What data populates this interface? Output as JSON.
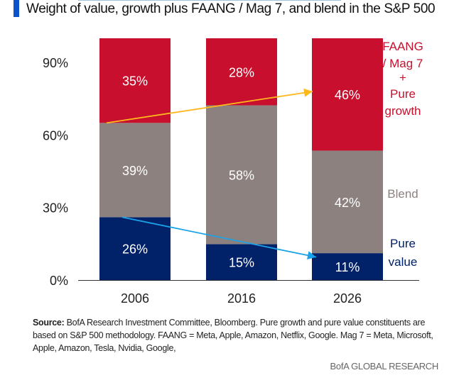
{
  "chart_data": {
    "type": "bar",
    "stacked": true,
    "title": "Weight of value, growth plus FAANG / Mag 7, and blend in the S&P 500",
    "categories": [
      "2006",
      "2016",
      "2026"
    ],
    "series": [
      {
        "name": "Pure value",
        "values": [
          26,
          15,
          11
        ],
        "color": "#012169"
      },
      {
        "name": "Blend",
        "values": [
          39,
          58,
          42
        ],
        "color": "#8c817f"
      },
      {
        "name": "FAANG / Mag 7 + Pure growth",
        "values": [
          35,
          28,
          46
        ],
        "color": "#c8102e"
      }
    ],
    "series_labels": [
      [
        "Pure",
        "value"
      ],
      [
        "Blend"
      ],
      [
        "FAANG",
        "/ Mag 7",
        "+",
        "Pure",
        "growth"
      ]
    ],
    "yticks": [
      "0%",
      "30%",
      "60%",
      "90%"
    ],
    "ytick_values": [
      0,
      30,
      60,
      90
    ],
    "ylim": [
      0,
      100
    ],
    "data_labels": [
      [
        "26%",
        "39%",
        "35%"
      ],
      [
        "15%",
        "58%",
        "28%"
      ],
      [
        "11%",
        "42%",
        "46%"
      ]
    ],
    "annotations": [
      {
        "type": "arrow",
        "color": "#ffb81c",
        "from": [
          "2006",
          65
        ],
        "to": [
          "2026",
          78
        ]
      },
      {
        "type": "arrow",
        "color": "#1aa3e8",
        "from": [
          "2006",
          26
        ],
        "to": [
          "2026",
          9.5
        ]
      }
    ],
    "grid": false,
    "legend": "right"
  },
  "source_label": "Source:",
  "source_text": " BofA Research Investment Committee, Bloomberg. Pure growth and pure value constituents are based on S&P 500 methodology. FAANG = Meta, Apple, Amazon, Netflix, Google. Mag 7 = Meta, Microsoft, Apple, Amazon, Tesla, Nvidia, Google,",
  "brand": "BofA GLOBAL RESEARCH"
}
